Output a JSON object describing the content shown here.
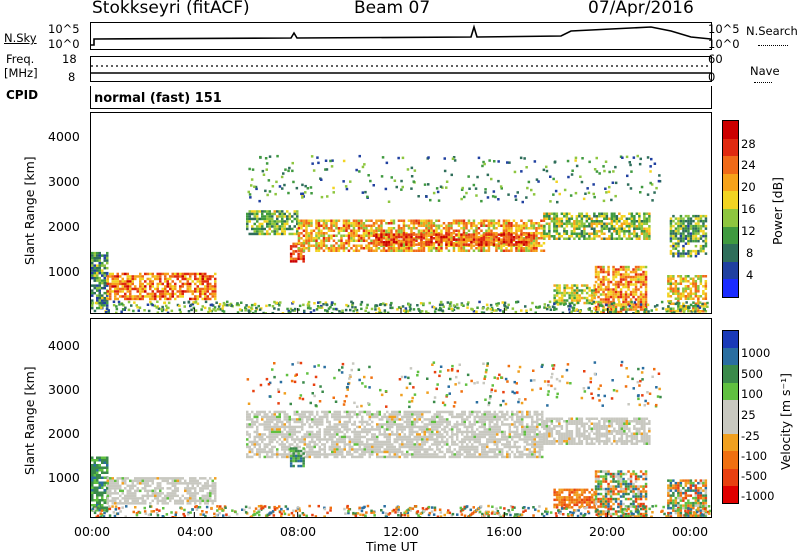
{
  "header": {
    "radar": "Stokkseyri (fitACF)",
    "beam": "Beam 07",
    "date": "07/Apr/2016"
  },
  "sky_panel": {
    "left_label": "N.Sky",
    "right_label": "N.Search",
    "left_ticks": [
      "10^5",
      "10^0"
    ],
    "right_ticks": [
      "10^5",
      "10^0"
    ]
  },
  "freq_panel": {
    "left_label_line1": "Freq.",
    "left_label_line2": "[MHz]",
    "left_ticks": [
      "18",
      "8"
    ],
    "right_ticks": [
      "60",
      "0"
    ],
    "right_label": "Nave"
  },
  "cpid": {
    "label": "CPID",
    "mode": "normal (fast)",
    "id": "151"
  },
  "chart_data": [
    {
      "type": "heatmap",
      "name": "power",
      "ylabel": "Slant Range [km]",
      "ylim": [
        180,
        4500
      ],
      "yticks": [
        "1000",
        "2000",
        "3000",
        "4000"
      ],
      "xlim_hours": [
        0,
        24
      ],
      "colorbar_label": "Power [dB]",
      "colorbar_ticks": [
        "28",
        "24",
        "20",
        "16",
        "12",
        "8",
        "4"
      ],
      "colorbar_colors": [
        "#1a2bff",
        "#2040a0",
        "#2e6e5a",
        "#3f9a3f",
        "#8ec63f",
        "#f2d422",
        "#f6a21a",
        "#f06a18",
        "#e02a10",
        "#cc0000"
      ],
      "echo_regions": [
        {
          "x0": 0.0,
          "x1": 0.6,
          "y0": 300,
          "y1": 1500,
          "level": 0.3
        },
        {
          "x0": 0.6,
          "x1": 4.8,
          "y0": 500,
          "y1": 1050,
          "level": 0.75
        },
        {
          "x0": 6.0,
          "x1": 8.0,
          "y0": 1900,
          "y1": 2400,
          "level": 0.4
        },
        {
          "x0": 7.7,
          "x1": 8.2,
          "y0": 1300,
          "y1": 1700,
          "level": 0.8
        },
        {
          "x0": 8.0,
          "x1": 17.5,
          "y0": 1500,
          "y1": 2200,
          "level": 0.65
        },
        {
          "x0": 11.0,
          "x1": 17.0,
          "y0": 1650,
          "y1": 1900,
          "level": 0.85
        },
        {
          "x0": 17.5,
          "x1": 21.6,
          "y0": 1800,
          "y1": 2350,
          "level": 0.45
        },
        {
          "x0": 17.9,
          "x1": 19.5,
          "y0": 400,
          "y1": 800,
          "level": 0.5
        },
        {
          "x0": 19.5,
          "x1": 21.5,
          "y0": 200,
          "y1": 1200,
          "level": 0.7
        },
        {
          "x0": 22.3,
          "x1": 23.8,
          "y0": 200,
          "y1": 1000,
          "level": 0.6
        },
        {
          "x0": 22.4,
          "x1": 23.8,
          "y0": 1400,
          "y1": 2300,
          "level": 0.35
        }
      ]
    },
    {
      "type": "heatmap",
      "name": "velocity",
      "ylabel": "Slant Range [km]",
      "ylim": [
        180,
        4500
      ],
      "yticks": [
        "1000",
        "2000",
        "3000",
        "4000"
      ],
      "xlabel": "Time UT",
      "xticks": [
        "00:00",
        "04:00",
        "08:00",
        "12:00",
        "16:00",
        "20:00",
        "00:00"
      ],
      "colorbar_label": "Velocity [m s⁻¹]",
      "colorbar_ticks": [
        "1000",
        "500",
        "100",
        "25",
        "-25",
        "-100",
        "-500",
        "-1000"
      ],
      "colorbar_colors": [
        "#1a3ab8",
        "#2a6ea0",
        "#3a8a4a",
        "#60c040",
        "#c8c8c0",
        "#c8c8c0",
        "#f0a020",
        "#f07010",
        "#e84010",
        "#e00000"
      ],
      "echo_regions": [
        {
          "x0": 0.0,
          "x1": 0.6,
          "y0": 300,
          "y1": 1500,
          "kind": "green"
        },
        {
          "x0": 0.6,
          "x1": 4.8,
          "y0": 500,
          "y1": 1050,
          "kind": "gray"
        },
        {
          "x0": 6.0,
          "x1": 17.5,
          "y0": 1500,
          "y1": 2500,
          "kind": "gray"
        },
        {
          "x0": 7.7,
          "x1": 8.2,
          "y0": 1300,
          "y1": 1700,
          "kind": "green"
        },
        {
          "x0": 17.5,
          "x1": 21.6,
          "y0": 1800,
          "y1": 2350,
          "kind": "gray"
        },
        {
          "x0": 17.9,
          "x1": 19.5,
          "y0": 400,
          "y1": 800,
          "kind": "orange"
        },
        {
          "x0": 19.5,
          "x1": 21.5,
          "y0": 200,
          "y1": 1200,
          "kind": "mixed"
        },
        {
          "x0": 22.3,
          "x1": 23.8,
          "y0": 200,
          "y1": 1000,
          "kind": "mixed"
        }
      ]
    }
  ]
}
